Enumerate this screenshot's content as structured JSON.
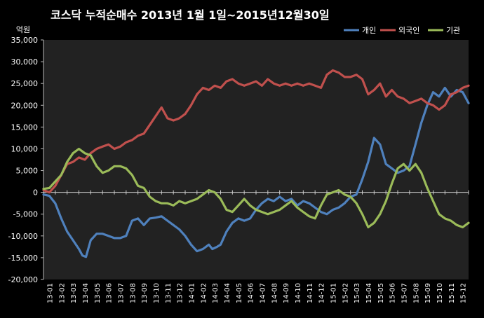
{
  "chart_data": {
    "type": "line",
    "title": "코스닥 누적순매수 2013년 1월 1일~2015년12월30일",
    "ylabel": "억원",
    "ylim": [
      -20000,
      35000
    ],
    "y_ticks": [
      "35,000",
      "30,000",
      "25,000",
      "20,000",
      "15,000",
      "10,000",
      "5,000",
      "0",
      "-5,000",
      "-10,000",
      "-15,000",
      "-20,000"
    ],
    "x_range": [
      0,
      36
    ],
    "categories": [
      "13-01",
      "13-02",
      "13-03",
      "13-04",
      "13-05",
      "13-06",
      "13-07",
      "13-08",
      "13-09",
      "13-10",
      "13-11",
      "13-12",
      "14-01",
      "14-02",
      "14-03",
      "14-04",
      "14-05",
      "14-06",
      "14-07",
      "14-08",
      "14-09",
      "14-10",
      "14-11",
      "14-12",
      "15-01",
      "15-02",
      "15-03",
      "15-04",
      "15-05",
      "15-06",
      "15-07",
      "15-08",
      "15-09",
      "15-10",
      "15-11",
      "15-12"
    ],
    "grid": false,
    "legend_position": "top-right",
    "series": [
      {
        "name": "개인",
        "color": "#4f81bd",
        "x": [
          0,
          0.5,
          1,
          1.5,
          2,
          2.5,
          3,
          3.3,
          3.6,
          4,
          4.5,
          5,
          5.5,
          6,
          6.5,
          7,
          7.5,
          8,
          8.5,
          9,
          9.5,
          10,
          10.5,
          11,
          11.5,
          12,
          12.5,
          13,
          13.5,
          14,
          14.3,
          14.7,
          15,
          15.5,
          16,
          16.5,
          17,
          17.5,
          18,
          18.5,
          19,
          19.5,
          20,
          20.5,
          21,
          21.5,
          22,
          22.5,
          23,
          23.5,
          24,
          24.5,
          25,
          25.5,
          26,
          26.5,
          27,
          27.5,
          28,
          28.5,
          29,
          29.5,
          30,
          30.5,
          31,
          31.5,
          32,
          32.5,
          33,
          33.5,
          34,
          34.5,
          35,
          35.5,
          36
        ],
        "values": [
          -500,
          -800,
          -2500,
          -6000,
          -9000,
          -11000,
          -13000,
          -14500,
          -14800,
          -11000,
          -9500,
          -9500,
          -10000,
          -10500,
          -10500,
          -10000,
          -6500,
          -6000,
          -7500,
          -6000,
          -5800,
          -5500,
          -6500,
          -7500,
          -8500,
          -10000,
          -12000,
          -13500,
          -13000,
          -12000,
          -13000,
          -12500,
          -12000,
          -9000,
          -7000,
          -6000,
          -6500,
          -6000,
          -4000,
          -2500,
          -1500,
          -2000,
          -1000,
          -2000,
          -1500,
          -3000,
          -2000,
          -2500,
          -3500,
          -4500,
          -5000,
          -4000,
          -3500,
          -2500,
          -1000,
          -500,
          3000,
          7000,
          12500,
          11000,
          6500,
          5500,
          4500,
          5000,
          6000,
          11000,
          16000,
          20000,
          23000,
          22000,
          24000,
          22000,
          23500,
          23000,
          20500
        ]
      },
      {
        "name": "외국인",
        "color": "#c0504d",
        "x": [
          0,
          0.5,
          1,
          1.5,
          2,
          2.5,
          3,
          3.5,
          4,
          4.5,
          5,
          5.5,
          6,
          6.5,
          7,
          7.5,
          8,
          8.5,
          9,
          9.5,
          10,
          10.5,
          11,
          11.5,
          12,
          12.5,
          13,
          13.5,
          14,
          14.5,
          15,
          15.5,
          16,
          16.5,
          17,
          17.5,
          18,
          18.5,
          19,
          19.5,
          20,
          20.5,
          21,
          21.5,
          22,
          22.5,
          23,
          23.5,
          24,
          24.5,
          25,
          25.5,
          26,
          26.5,
          27,
          27.5,
          28,
          28.5,
          29,
          29.5,
          30,
          30.5,
          31,
          31.5,
          32,
          32.5,
          33,
          33.5,
          34,
          34.5,
          35,
          35.5,
          36
        ],
        "values": [
          500,
          0,
          1500,
          4000,
          6500,
          7000,
          8000,
          7500,
          9000,
          10000,
          10500,
          11000,
          10000,
          10500,
          11500,
          12000,
          13000,
          13500,
          15500,
          17500,
          19500,
          17000,
          16500,
          17000,
          18000,
          20000,
          22500,
          24000,
          23500,
          24500,
          24000,
          25500,
          26000,
          25000,
          24500,
          25000,
          25500,
          24500,
          26000,
          25000,
          24500,
          25000,
          24500,
          25000,
          24500,
          25000,
          24500,
          24000,
          27000,
          28000,
          27500,
          26500,
          26500,
          27000,
          26000,
          22500,
          23500,
          25000,
          22000,
          23500,
          22000,
          21500,
          20500,
          21000,
          21500,
          20500,
          20000,
          19000,
          20000,
          22500,
          23000,
          24000,
          24500
        ]
      },
      {
        "name": "기관",
        "color": "#9bbb59",
        "x": [
          0,
          0.5,
          1,
          1.5,
          2,
          2.5,
          3,
          3.5,
          4,
          4.5,
          5,
          5.5,
          6,
          6.5,
          7,
          7.5,
          8,
          8.5,
          9,
          9.5,
          10,
          10.5,
          11,
          11.5,
          12,
          12.5,
          13,
          13.5,
          14,
          14.5,
          15,
          15.5,
          16,
          16.5,
          17,
          17.5,
          18,
          18.5,
          19,
          19.5,
          20,
          20.5,
          21,
          21.5,
          22,
          22.5,
          23,
          23.5,
          24,
          24.5,
          25,
          25.5,
          26,
          26.5,
          27,
          27.5,
          28,
          28.5,
          29,
          29.5,
          30,
          30.5,
          31,
          31.5,
          32,
          32.5,
          33,
          33.5,
          34,
          34.5,
          35,
          35.5,
          36
        ],
        "values": [
          800,
          1000,
          2500,
          4000,
          7000,
          9000,
          10000,
          9000,
          8500,
          6000,
          4500,
          5000,
          6000,
          6000,
          5500,
          4000,
          1500,
          1000,
          -1000,
          -2000,
          -2500,
          -2500,
          -3000,
          -2000,
          -2500,
          -2000,
          -1500,
          -500,
          500,
          0,
          -1500,
          -4000,
          -4500,
          -3000,
          -1500,
          -3000,
          -4000,
          -4500,
          -5000,
          -4500,
          -4000,
          -3000,
          -2000,
          -3500,
          -4500,
          -5500,
          -6000,
          -3000,
          -500,
          0,
          500,
          -500,
          -1000,
          -2500,
          -5000,
          -8000,
          -7000,
          -5000,
          -2000,
          2000,
          5500,
          6500,
          5000,
          6500,
          4500,
          1000,
          -2000,
          -5000,
          -6000,
          -6500,
          -7500,
          -8000,
          -7000
        ]
      }
    ]
  }
}
